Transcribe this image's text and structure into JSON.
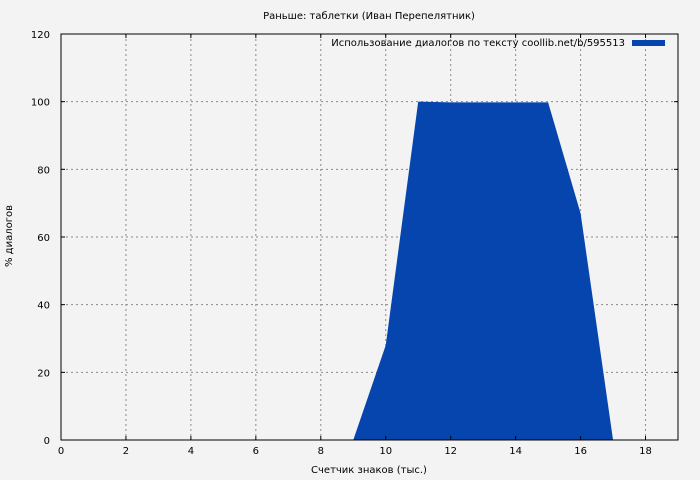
{
  "chart_data": {
    "type": "area",
    "title": "Раньше: таблетки (Иван Перепелятник)",
    "xlabel": "Счетчик знаков (тыс.)",
    "ylabel": "% диалогов",
    "xlim": [
      0,
      19
    ],
    "ylim": [
      0,
      120
    ],
    "x_ticks": [
      0,
      2,
      4,
      6,
      8,
      10,
      12,
      14,
      16,
      18
    ],
    "y_ticks": [
      0,
      20,
      40,
      60,
      80,
      100,
      120
    ],
    "grid": true,
    "legend_position": "top-right",
    "series": [
      {
        "name": "Использование диалогов по тексту coollib.net/b/595513",
        "color": "#0645ad",
        "x": [
          9,
          10,
          11,
          12,
          13,
          14,
          15,
          16,
          17
        ],
        "y": [
          0,
          28,
          100,
          99.8,
          99.8,
          99.8,
          99.8,
          67,
          0
        ]
      }
    ]
  }
}
